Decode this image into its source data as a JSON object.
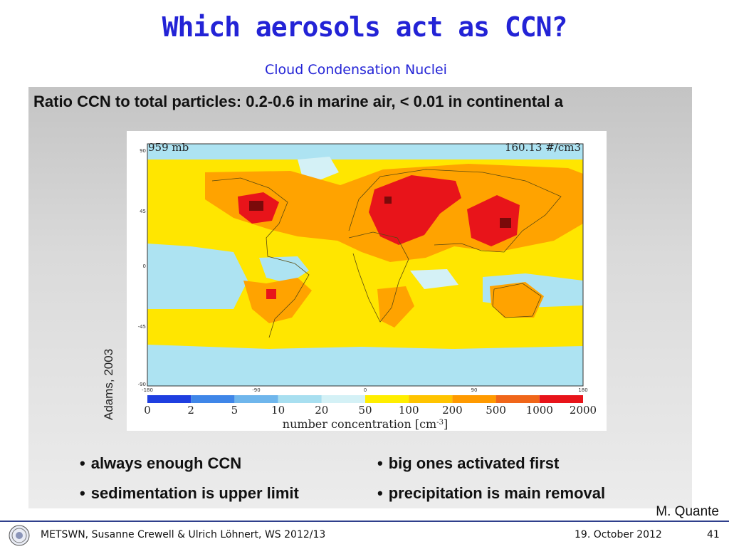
{
  "slide": {
    "title": "Which aerosols act as CCN?",
    "subtitle": "Cloud Condensation Nuclei",
    "headline": "Ratio CCN to total particles: 0.2-0.6 in marine air,  < 0.01 in continental a",
    "credit": "Adams, 2003",
    "bullets": {
      "b1": "always enough CCN",
      "b2": "big ones activated first",
      "b3": "sedimentation is upper limit",
      "b4": "precipitation is main removal"
    },
    "author_credit": "M. Quante"
  },
  "figure": {
    "pressure_label": "959  mb",
    "mean_label": "160.13 #/cm3",
    "lat_ticks": [
      "90",
      "45",
      "0",
      "-45",
      "-90"
    ],
    "lon_ticks": [
      "-180",
      "-90",
      "0",
      "90",
      "180"
    ],
    "colorbar": {
      "tick_labels": [
        "0",
        "2",
        "5",
        "10",
        "20",
        "50",
        "100",
        "200",
        "500",
        "1000",
        "2000"
      ],
      "colors": [
        "#1f3fe0",
        "#3f86e8",
        "#6fb6ec",
        "#a8dff0",
        "#d4f1f6",
        "#ffee00",
        "#ffc400",
        "#ff9a00",
        "#f0661a",
        "#e8141a",
        "#7a0a0a"
      ],
      "label": "number concentration [cm",
      "label_sup": "-3",
      "label_end": "]"
    }
  },
  "footer": {
    "left": "METSWN, Susanne Crewell & Ulrich Löhnert,  WS 2012/13",
    "date": "19. October 2012",
    "page": "41"
  },
  "colors": {
    "title": "#2323d6",
    "footer_line": "#2f3f8c"
  }
}
